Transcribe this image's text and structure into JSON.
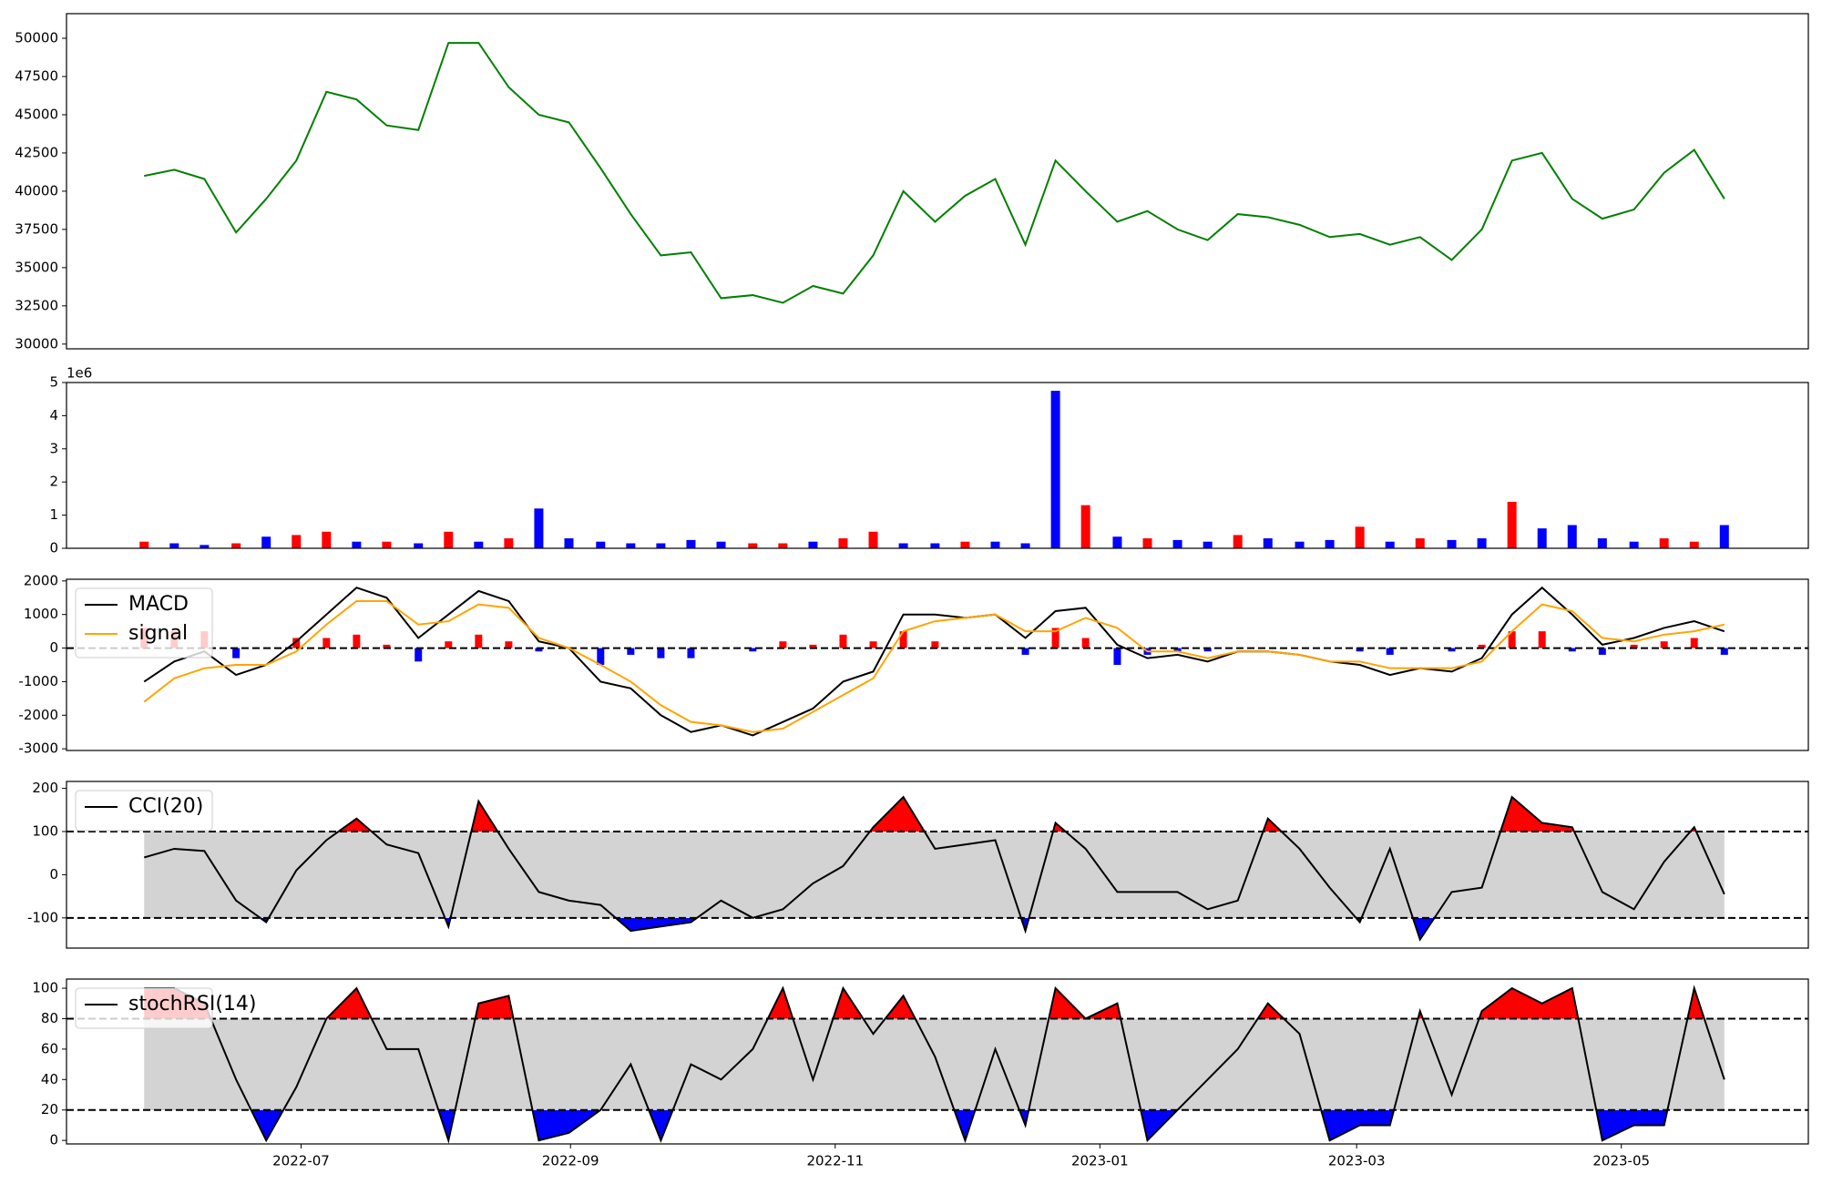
{
  "chart_data": [
    {
      "type": "line",
      "series": [
        {
          "color": "#008000",
          "values": [
            41000,
            41400,
            40800,
            37300,
            39500,
            42000,
            46500,
            46000,
            44300,
            44000,
            49700,
            49700,
            46800,
            45000,
            44500,
            41500,
            38500,
            35800,
            36000,
            33000,
            33200,
            32700,
            33800,
            33300,
            35800,
            40000,
            38000,
            39700,
            40800,
            36500,
            42000,
            40000,
            38000,
            38700,
            37500,
            36800,
            38500,
            38300,
            37800,
            37000,
            37200,
            36500,
            37000,
            35500,
            37500,
            42000,
            42500,
            39500,
            38200,
            38800,
            41200,
            42700,
            39500
          ]
        }
      ],
      "ylim": [
        29690,
        51610
      ],
      "yticks": [
        30000,
        32500,
        35000,
        37500,
        40000,
        42500,
        45000,
        47500,
        50000
      ]
    },
    {
      "type": "bar",
      "offset_label": "1e6",
      "values": [
        0.2,
        0.15,
        0.1,
        0.15,
        0.35,
        0.4,
        0.5,
        0.2,
        0.2,
        0.15,
        0.5,
        0.2,
        0.3,
        1.2,
        0.3,
        0.2,
        0.15,
        0.15,
        0.25,
        0.2,
        0.15,
        0.15,
        0.2,
        0.3,
        0.5,
        0.15,
        0.15,
        0.2,
        0.2,
        0.15,
        4.75,
        1.3,
        0.35,
        0.3,
        0.25,
        0.2,
        0.4,
        0.3,
        0.2,
        0.25,
        0.65,
        0.2,
        0.3,
        0.25,
        0.3,
        1.4,
        0.6,
        0.7,
        0.3,
        0.2,
        0.3,
        0.2,
        0.7
      ],
      "bar_colors": [
        "#ff0000",
        "#0000ff",
        "#0000ff",
        "#ff0000",
        "#0000ff",
        "#ff0000",
        "#ff0000",
        "#0000ff",
        "#ff0000",
        "#0000ff",
        "#ff0000",
        "#0000ff",
        "#ff0000",
        "#0000ff",
        "#0000ff",
        "#0000ff",
        "#0000ff",
        "#0000ff",
        "#0000ff",
        "#0000ff",
        "#ff0000",
        "#ff0000",
        "#0000ff",
        "#ff0000",
        "#ff0000",
        "#0000ff",
        "#0000ff",
        "#ff0000",
        "#0000ff",
        "#0000ff",
        "#0000ff",
        "#ff0000",
        "#0000ff",
        "#ff0000",
        "#0000ff",
        "#0000ff",
        "#ff0000",
        "#0000ff",
        "#0000ff",
        "#0000ff",
        "#ff0000",
        "#0000ff",
        "#ff0000",
        "#0000ff",
        "#0000ff",
        "#ff0000",
        "#0000ff",
        "#0000ff",
        "#0000ff",
        "#0000ff",
        "#ff0000",
        "#ff0000",
        "#0000ff"
      ],
      "ylim": [
        0,
        5
      ],
      "yticks": [
        0,
        1,
        2,
        3,
        4,
        5
      ]
    },
    {
      "type": "line",
      "series": [
        {
          "name": "MACD",
          "color": "#000000",
          "values": [
            -1000,
            -400,
            -100,
            -800,
            -500,
            200,
            1000,
            1800,
            1500,
            300,
            1000,
            1700,
            1400,
            200,
            0,
            -1000,
            -1200,
            -2000,
            -2500,
            -2300,
            -2600,
            -2200,
            -1800,
            -1000,
            -700,
            1000,
            1000,
            900,
            1000,
            300,
            1100,
            1200,
            100,
            -300,
            -200,
            -400,
            -100,
            -100,
            -200,
            -400,
            -500,
            -800,
            -600,
            -700,
            -300,
            1000,
            1800,
            1000,
            100,
            300,
            600,
            800,
            500
          ]
        },
        {
          "name": "signal",
          "color": "#ffa500",
          "values": [
            -1600,
            -900,
            -600,
            -500,
            -500,
            -100,
            700,
            1400,
            1400,
            700,
            800,
            1300,
            1200,
            300,
            0,
            -500,
            -1000,
            -1700,
            -2200,
            -2300,
            -2500,
            -2400,
            -1900,
            -1400,
            -900,
            500,
            800,
            900,
            1000,
            500,
            500,
            900,
            600,
            -100,
            -100,
            -300,
            -100,
            -100,
            -200,
            -400,
            -400,
            -600,
            -600,
            -600,
            -400,
            500,
            1300,
            1100,
            300,
            200,
            400,
            500,
            700
          ]
        }
      ],
      "histogram": {
        "values": [
          600,
          500,
          500,
          -300,
          0,
          300,
          300,
          400,
          100,
          -400,
          200,
          400,
          200,
          -100,
          0,
          -500,
          -200,
          -300,
          -300,
          0,
          -100,
          200,
          100,
          400,
          200,
          500,
          200,
          0,
          0,
          -200,
          600,
          300,
          -500,
          -200,
          -100,
          -100,
          0,
          0,
          0,
          0,
          -100,
          -200,
          0,
          -100,
          100,
          500,
          500,
          -100,
          -200,
          100,
          200,
          300,
          -200
        ],
        "pos_color": "#ff0000",
        "neg_color": "#0000ff"
      },
      "hlines": [
        0
      ],
      "ylim": [
        -3050,
        2050
      ],
      "yticks": [
        -3000,
        -2000,
        -1000,
        0,
        1000,
        2000
      ],
      "legend": "upper left"
    },
    {
      "type": "line",
      "series": [
        {
          "name": "CCI(20)",
          "color": "#000000",
          "values": [
            40,
            60,
            55,
            -60,
            -110,
            10,
            80,
            130,
            70,
            50,
            -120,
            170,
            60,
            -40,
            -60,
            -70,
            -130,
            -120,
            -110,
            -60,
            -100,
            -80,
            -20,
            20,
            110,
            180,
            60,
            70,
            80,
            -130,
            120,
            60,
            -40,
            -40,
            -40,
            -80,
            -60,
            130,
            60,
            -30,
            -110,
            60,
            -150,
            -40,
            -30,
            180,
            120,
            110,
            -40,
            -80,
            30,
            110,
            -45
          ]
        }
      ],
      "bands": [
        -100,
        100
      ],
      "band_color": "#d3d3d3",
      "above_color": "#ff0000",
      "below_color": "#0000ff",
      "ylim": [
        -170,
        216
      ],
      "yticks": [
        -100,
        0,
        100,
        200
      ],
      "legend": "upper left"
    },
    {
      "type": "line",
      "series": [
        {
          "name": "stochRSI(14)",
          "color": "#000000",
          "values": [
            100,
            100,
            90,
            40,
            0,
            35,
            80,
            100,
            60,
            60,
            0,
            90,
            95,
            0,
            5,
            20,
            50,
            0,
            50,
            40,
            60,
            100,
            40,
            100,
            70,
            95,
            55,
            0,
            60,
            10,
            100,
            80,
            90,
            0,
            20,
            40,
            60,
            90,
            70,
            0,
            10,
            10,
            85,
            30,
            85,
            100,
            90,
            100,
            0,
            10,
            10,
            100,
            40
          ]
        }
      ],
      "bands": [
        20,
        80
      ],
      "band_color": "#d3d3d3",
      "above_color": "#ff0000",
      "below_color": "#0000ff",
      "ylim": [
        -2.3,
        106
      ],
      "yticks": [
        0,
        20,
        40,
        60,
        80,
        100
      ],
      "legend": "upper left",
      "x": [
        2022.397,
        2022.416,
        2022.435,
        2022.455,
        2022.474,
        2022.493,
        2022.512,
        2022.531,
        2022.55,
        2022.57,
        2022.589,
        2022.608,
        2022.627,
        2022.646,
        2022.665,
        2022.685,
        2022.704,
        2022.723,
        2022.742,
        2022.761,
        2022.781,
        2022.8,
        2022.819,
        2022.838,
        2022.857,
        2022.876,
        2022.896,
        2022.915,
        2022.934,
        2022.953,
        2022.972,
        2022.991,
        2023.011,
        2023.03,
        2023.049,
        2023.068,
        2023.087,
        2023.106,
        2023.126,
        2023.145,
        2023.164,
        2023.183,
        2023.202,
        2023.222,
        2023.241,
        2023.26,
        2023.279,
        2023.298,
        2023.317,
        2023.337,
        2023.356,
        2023.375,
        2023.394
      ],
      "xlim": [
        2022.348,
        2023.447
      ],
      "xticks": [
        {
          "value": 2022.496,
          "label": "2022-07"
        },
        {
          "value": 2022.666,
          "label": "2022-09"
        },
        {
          "value": 2022.833,
          "label": "2022-11"
        },
        {
          "value": 2023.0,
          "label": "2023-01"
        },
        {
          "value": 2023.162,
          "label": "2023-03"
        },
        {
          "value": 2023.329,
          "label": "2023-05"
        }
      ]
    }
  ]
}
